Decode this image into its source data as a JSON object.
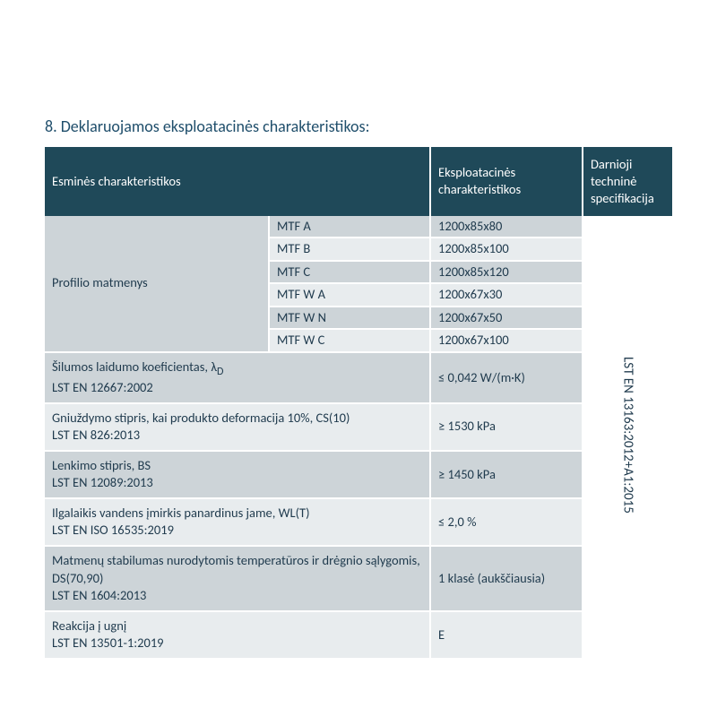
{
  "title": "8. Deklaruojamos eksploatacinės charakteristikos:",
  "headers": {
    "h1": "Esminės charakteristikos",
    "h2": "Eksploatacinės charakteristikos",
    "h3": "Darnioji techninė specifikacija"
  },
  "profile": {
    "label": "Profilio matmenys",
    "rows": [
      {
        "code": "MTF A",
        "val": "1200x85x80"
      },
      {
        "code": "MTF B",
        "val": "1200x85x100"
      },
      {
        "code": "MTF C",
        "val": "1200x85x120"
      },
      {
        "code": "MTF W A",
        "val": "1200x67x30"
      },
      {
        "code": "MTF W N",
        "val": "1200x67x50"
      },
      {
        "code": "MTF W C",
        "val": "1200x67x100"
      }
    ]
  },
  "props": [
    {
      "label": "Šilumos laidumo koeficientas, λD\nLST EN 12667:2002",
      "val": "≤ 0,042 W/(m·K)"
    },
    {
      "label": "Gniuždymo stipris, kai produkto deformacija 10%, CS(10)\nLST EN 826:2013",
      "val": "≥ 1530 kPa"
    },
    {
      "label": "Lenkimo stipris, BS\nLST EN 12089:2013",
      "val": "≥ 1450 kPa"
    },
    {
      "label": "Ilgalaikis vandens įmirkis panardinus jame, WL(T)\nLST EN ISO 16535:2019",
      "val": "≤ 2,0 %"
    },
    {
      "label": "Matmenų stabilumas nurodytomis temperatūros ir drėgnio sąlygomis, DS(70,90)\nLST EN 1604:2013",
      "val": "1 klasė (aukščiausia)"
    },
    {
      "label": "Reakcija į ugnį\nLST EN 13501-1:2019",
      "val": "E"
    }
  ],
  "spec": "LST EN 13163:2012+A1:2015",
  "style": {
    "headerBg": "#1f4959",
    "oddRow": "#cdd4d8",
    "evenRow": "#e8ecee",
    "textColor": "#1f3a4d",
    "titleColor": "#1f4e6b",
    "borderColor": "#ffffff",
    "fontSize": 14.5,
    "titleFontSize": 18
  }
}
